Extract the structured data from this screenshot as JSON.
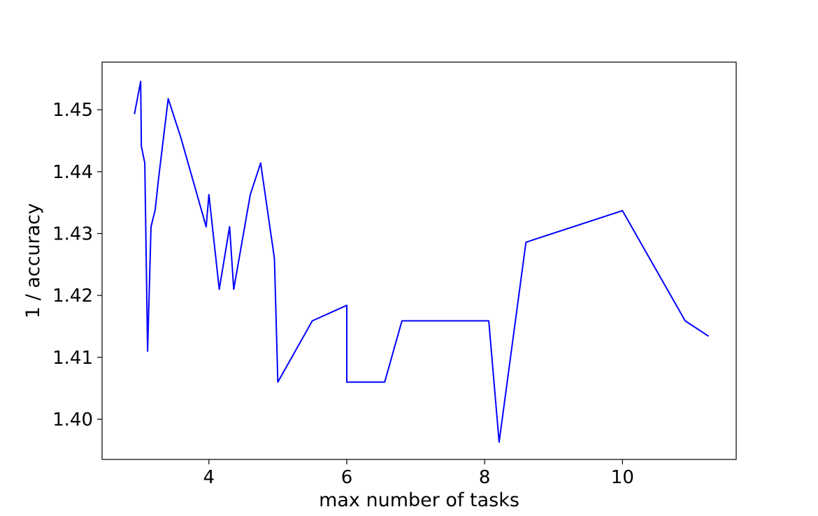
{
  "chart_data": {
    "type": "line",
    "title": "",
    "xlabel": "max number of tasks",
    "ylabel": "1 / accuracy",
    "xlim": [
      2.45,
      11.65
    ],
    "ylim": [
      1.3935,
      1.4577
    ],
    "xticks": [
      4,
      6,
      8,
      10
    ],
    "xtick_labels": [
      "4",
      "6",
      "8",
      "10"
    ],
    "yticks": [
      1.4,
      1.41,
      1.42,
      1.43,
      1.44,
      1.45
    ],
    "ytick_labels": [
      "1.40",
      "1.41",
      "1.42",
      "1.43",
      "1.44",
      "1.45"
    ],
    "grid": false,
    "legend": "none",
    "series": [
      {
        "color": "#0000ff",
        "x": [
          2.92,
          3.01,
          3.02,
          3.07,
          3.11,
          3.16,
          3.22,
          3.27,
          3.41,
          3.59,
          3.96,
          4.0,
          4.15,
          4.3,
          4.36,
          4.6,
          4.75,
          4.95,
          5.0,
          5.5,
          6.0,
          6.0,
          6.55,
          6.8,
          8.06,
          8.21,
          8.6,
          10.0,
          10.91,
          11.25
        ],
        "y": [
          1.4493,
          1.4546,
          1.4441,
          1.4414,
          1.411,
          1.4311,
          1.4338,
          1.4389,
          1.4518,
          1.4456,
          1.4311,
          1.4363,
          1.421,
          1.4311,
          1.421,
          1.4363,
          1.4414,
          1.426,
          1.406,
          1.4159,
          1.4184,
          1.406,
          1.406,
          1.4159,
          1.4159,
          1.3963,
          1.4286,
          1.4337,
          1.4159,
          1.4134
        ]
      }
    ]
  }
}
